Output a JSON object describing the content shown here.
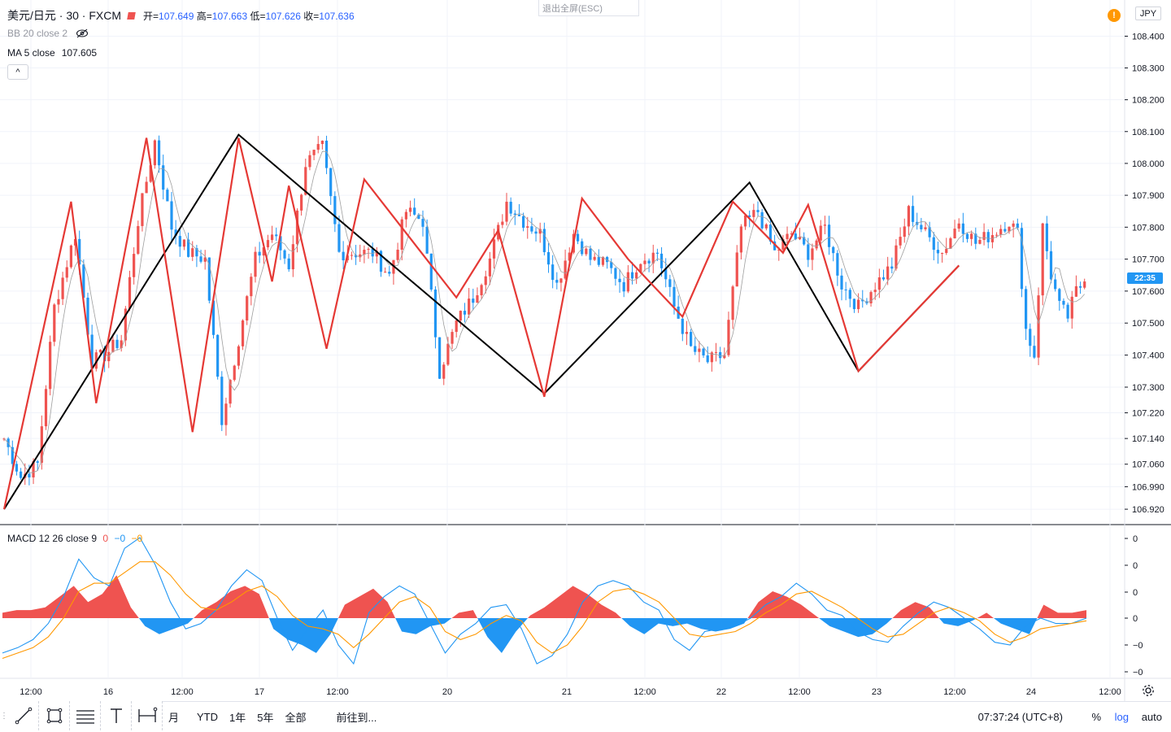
{
  "header": {
    "symbol": "美元/日元 · 30 · FXCM",
    "ohlc": {
      "open_label": "开=",
      "open": "107.649",
      "high_label": "高=",
      "high": "107.663",
      "low_label": "低=",
      "low": "107.626",
      "close_label": "收=",
      "close": "107.636"
    },
    "bb_label": "BB 20 close 2",
    "ma_label": "MA 5 close",
    "ma_value": "107.605",
    "collapse_glyph": "^",
    "exit_fullscreen": "退出全屏(ESC)",
    "alert_glyph": "!",
    "currency": "JPY",
    "price_tag": "22:35"
  },
  "macd_legend": {
    "label": "MACD 12 26 close 9",
    "v1": "0",
    "v2": "−0",
    "v3": "−0"
  },
  "bottom": {
    "ranges": [
      "月",
      "YTD",
      "1年",
      "5年",
      "全部"
    ],
    "goto": "前往到...",
    "clock": "07:37:24 (UTC+8)",
    "percent": "%",
    "log": "log",
    "auto": "auto"
  },
  "tools": [
    "trend-line-icon",
    "rectangle-icon",
    "fib-icon",
    "text-icon",
    "measure-icon"
  ],
  "colors": {
    "up": "#ef5350",
    "down": "#2196f3",
    "zigzag_minor": "#e53935",
    "zigzag_major": "#000000",
    "macd_line": "#2196f3",
    "signal_line": "#ff9800",
    "ma_line": "#9e9e9e"
  },
  "chart_data": [
    {
      "type": "candlestick",
      "title": "美元/日元 · 30 · FXCM",
      "y_scale": "log",
      "ylim": [
        106.9,
        108.45
      ],
      "y_ticks": [
        "108.400",
        "108.300",
        "108.200",
        "108.100",
        "108.000",
        "107.900",
        "107.800",
        "107.700",
        "107.600",
        "107.500",
        "107.400",
        "107.300",
        "107.220",
        "107.140",
        "107.060",
        "106.990",
        "106.920"
      ],
      "x_ticks": [
        "12:00",
        "16",
        "12:00",
        "17",
        "12:00",
        "20",
        "21",
        "12:00",
        "22",
        "12:00",
        "23",
        "12:00",
        "24",
        "12:00"
      ],
      "price_path": [
        [
          0,
          107.14
        ],
        [
          4,
          107.02
        ],
        [
          8,
          107.06
        ],
        [
          12,
          107.55
        ],
        [
          17,
          107.78
        ],
        [
          21,
          107.38
        ],
        [
          24,
          107.4
        ],
        [
          28,
          107.45
        ],
        [
          32,
          107.82
        ],
        [
          36,
          108.07
        ],
        [
          40,
          107.8
        ],
        [
          44,
          107.72
        ],
        [
          48,
          107.7
        ],
        [
          52,
          107.2
        ],
        [
          56,
          107.45
        ],
        [
          60,
          107.7
        ],
        [
          64,
          107.78
        ],
        [
          68,
          107.68
        ],
        [
          72,
          108.0
        ],
        [
          76,
          108.05
        ],
        [
          80,
          107.72
        ],
        [
          84,
          107.72
        ],
        [
          88,
          107.72
        ],
        [
          92,
          107.65
        ],
        [
          96,
          107.85
        ],
        [
          100,
          107.82
        ],
        [
          104,
          107.35
        ],
        [
          108,
          107.5
        ],
        [
          112,
          107.58
        ],
        [
          116,
          107.7
        ],
        [
          120,
          107.88
        ],
        [
          124,
          107.82
        ],
        [
          128,
          107.78
        ],
        [
          132,
          107.62
        ],
        [
          136,
          107.78
        ],
        [
          140,
          107.7
        ],
        [
          144,
          107.68
        ],
        [
          148,
          107.62
        ],
        [
          152,
          107.7
        ],
        [
          156,
          107.72
        ],
        [
          160,
          107.55
        ],
        [
          164,
          107.42
        ],
        [
          168,
          107.38
        ],
        [
          172,
          107.4
        ],
        [
          176,
          107.8
        ],
        [
          180,
          107.85
        ],
        [
          184,
          107.72
        ],
        [
          188,
          107.78
        ],
        [
          192,
          107.72
        ],
        [
          196,
          107.8
        ],
        [
          200,
          107.62
        ],
        [
          204,
          107.55
        ],
        [
          208,
          107.62
        ],
        [
          212,
          107.68
        ],
        [
          216,
          107.85
        ],
        [
          220,
          107.78
        ],
        [
          224,
          107.72
        ],
        [
          228,
          107.82
        ],
        [
          232,
          107.75
        ],
        [
          236,
          107.78
        ],
        [
          240,
          107.82
        ],
        [
          242,
          107.78
        ],
        [
          244,
          107.48
        ],
        [
          246,
          107.4
        ],
        [
          248,
          107.8
        ],
        [
          250,
          107.65
        ],
        [
          252,
          107.55
        ],
        [
          254,
          107.52
        ],
        [
          256,
          107.6
        ],
        [
          258,
          107.63
        ]
      ],
      "zigzag_minor": [
        [
          0,
          106.92
        ],
        [
          16,
          107.88
        ],
        [
          22,
          107.25
        ],
        [
          34,
          108.08
        ],
        [
          45,
          107.16
        ],
        [
          56,
          108.08
        ],
        [
          64,
          107.63
        ],
        [
          68,
          107.93
        ],
        [
          77,
          107.42
        ],
        [
          86,
          107.95
        ],
        [
          108,
          107.58
        ],
        [
          118,
          107.79
        ],
        [
          129,
          107.27
        ],
        [
          138,
          107.89
        ],
        [
          149,
          107.7
        ],
        [
          162,
          107.52
        ],
        [
          174,
          107.88
        ],
        [
          186,
          107.72
        ],
        [
          192,
          107.87
        ],
        [
          204,
          107.35
        ],
        [
          228,
          107.68
        ]
      ],
      "zigzag_major": [
        [
          0,
          106.92
        ],
        [
          56,
          108.09
        ],
        [
          129,
          107.28
        ],
        [
          178,
          107.94
        ],
        [
          204,
          107.35
        ],
        [
          228,
          107.68
        ]
      ]
    },
    {
      "type": "macd",
      "title": "MACD 12 26 close 9",
      "y_ticks": [
        "0",
        "0",
        "0",
        "0",
        "−0",
        "−0"
      ],
      "histogram": [
        0.2,
        0.3,
        0.3,
        0.4,
        0.8,
        1.2,
        0.6,
        0.9,
        1.6,
        0.4,
        -0.3,
        -0.6,
        -0.4,
        -0.2,
        0.3,
        0.6,
        1.0,
        1.2,
        0.9,
        -0.4,
        -0.8,
        -1.0,
        -1.3,
        -0.6,
        0.5,
        0.8,
        1.1,
        0.6,
        -0.5,
        -0.6,
        -0.3,
        -0.2,
        0.2,
        0.3,
        -0.7,
        -1.3,
        -0.5,
        0.1,
        0.4,
        0.8,
        1.2,
        0.9,
        0.5,
        0.2,
        -0.3,
        -0.6,
        -0.2,
        -0.3,
        -0.2,
        -0.4,
        -0.5,
        -0.4,
        -0.2,
        0.6,
        1.0,
        0.8,
        0.5,
        0.1,
        -0.3,
        -0.5,
        -0.7,
        -0.6,
        -0.2,
        0.3,
        0.6,
        0.4,
        -0.2,
        -0.3,
        -0.1,
        0.2,
        -0.2,
        -0.4,
        -0.6,
        0.5,
        0.2,
        0.2,
        0.3
      ],
      "macd": [
        -1.3,
        -1.1,
        -0.8,
        -0.2,
        0.8,
        2.2,
        1.5,
        1.2,
        2.6,
        3.0,
        2.0,
        0.6,
        -0.4,
        -0.2,
        0.3,
        1.2,
        1.8,
        1.4,
        0.0,
        -1.2,
        -0.4,
        0.3,
        -1.0,
        -1.7,
        0.2,
        0.8,
        1.2,
        0.9,
        -0.2,
        -1.3,
        -0.6,
        -0.2,
        0.4,
        0.5,
        -0.4,
        -1.7,
        -1.4,
        -0.6,
        0.6,
        1.2,
        1.4,
        1.2,
        0.6,
        0.3,
        -0.8,
        -1.2,
        -0.5,
        -0.4,
        -0.3,
        0.0,
        0.5,
        0.8,
        1.3,
        0.9,
        0.3,
        0.1,
        -0.5,
        -0.8,
        -0.9,
        -0.3,
        0.2,
        0.6,
        0.4,
        0.0,
        -0.4,
        -0.9,
        -1.0,
        -0.3,
        0.0,
        -0.2,
        -0.2,
        0.0
      ],
      "signal": [
        -1.5,
        -1.3,
        -1.1,
        -0.7,
        0.0,
        1.0,
        1.3,
        1.3,
        1.7,
        2.1,
        2.1,
        1.6,
        0.9,
        0.4,
        0.3,
        0.6,
        1.0,
        1.2,
        0.8,
        0.1,
        -0.3,
        -0.4,
        -0.6,
        -1.1,
        -0.6,
        0.0,
        0.6,
        0.8,
        0.4,
        -0.5,
        -0.8,
        -0.6,
        -0.2,
        0.1,
        -0.1,
        -0.9,
        -1.3,
        -1.0,
        -0.3,
        0.6,
        1.0,
        1.1,
        0.9,
        0.6,
        0.0,
        -0.6,
        -0.7,
        -0.6,
        -0.5,
        -0.2,
        0.2,
        0.5,
        0.9,
        1.0,
        0.7,
        0.4,
        0.0,
        -0.4,
        -0.7,
        -0.6,
        -0.2,
        0.2,
        0.4,
        0.2,
        -0.1,
        -0.6,
        -0.9,
        -0.7,
        -0.4,
        -0.3,
        -0.2,
        -0.1
      ]
    }
  ]
}
